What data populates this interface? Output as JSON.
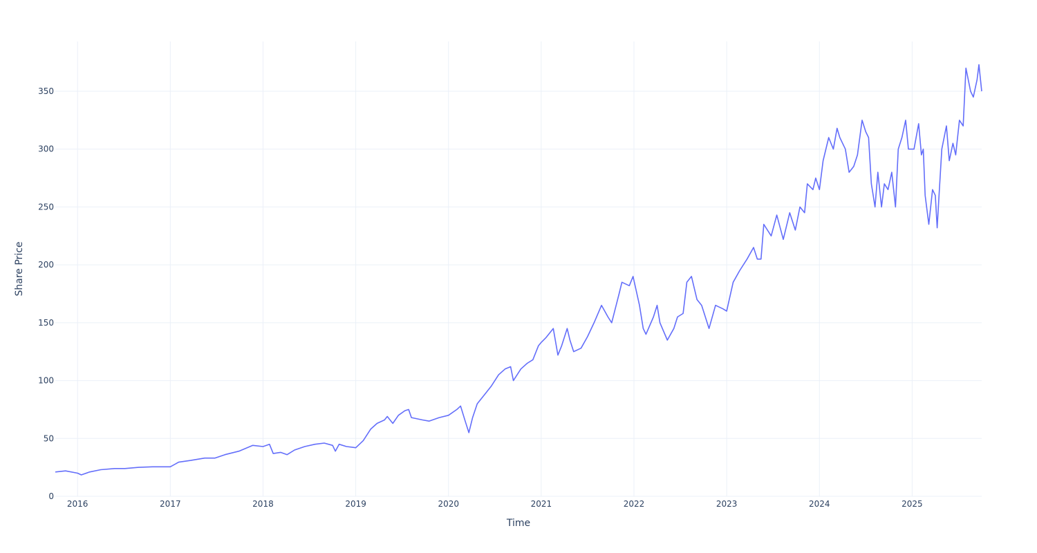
{
  "chart_data": {
    "type": "line",
    "title": "",
    "xlabel": "Time",
    "ylabel": "Share Price",
    "xlim": [
      2015.76,
      2025.75
    ],
    "ylim": [
      0,
      393
    ],
    "grid": true,
    "legend": "none",
    "line_color": "#636efa",
    "x_ticks": [
      2016,
      2017,
      2018,
      2019,
      2020,
      2021,
      2022,
      2023,
      2024,
      2025
    ],
    "x_tick_labels": [
      "2016",
      "2017",
      "2018",
      "2019",
      "2020",
      "2021",
      "2022",
      "2023",
      "2024",
      "2025"
    ],
    "y_ticks": [
      0,
      50,
      100,
      150,
      200,
      250,
      300,
      350
    ],
    "y_tick_labels": [
      "0",
      "50",
      "100",
      "150",
      "200",
      "250",
      "300",
      "350"
    ],
    "series": [
      {
        "name": "Share Price",
        "x": [
          2015.76,
          2015.87,
          2016.0,
          2016.04,
          2016.13,
          2016.25,
          2016.4,
          2016.51,
          2016.66,
          2016.81,
          2017.0,
          2017.09,
          2017.22,
          2017.37,
          2017.48,
          2017.59,
          2017.74,
          2017.89,
          2018.0,
          2018.07,
          2018.11,
          2018.19,
          2018.26,
          2018.34,
          2018.45,
          2018.56,
          2018.66,
          2018.75,
          2018.78,
          2018.82,
          2018.9,
          2019.0,
          2019.08,
          2019.16,
          2019.23,
          2019.31,
          2019.34,
          2019.4,
          2019.46,
          2019.53,
          2019.57,
          2019.6,
          2019.72,
          2019.79,
          2019.9,
          2020.0,
          2020.09,
          2020.13,
          2020.18,
          2020.22,
          2020.26,
          2020.31,
          2020.39,
          2020.46,
          2020.54,
          2020.61,
          2020.67,
          2020.7,
          2020.78,
          2020.85,
          2020.91,
          2020.97,
          2021.0,
          2021.05,
          2021.13,
          2021.18,
          2021.22,
          2021.28,
          2021.31,
          2021.35,
          2021.43,
          2021.5,
          2021.57,
          2021.65,
          2021.72,
          2021.76,
          2021.84,
          2021.87,
          2021.95,
          2021.99,
          2022.06,
          2022.1,
          2022.13,
          2022.21,
          2022.25,
          2022.28,
          2022.36,
          2022.43,
          2022.47,
          2022.53,
          2022.57,
          2022.62,
          2022.68,
          2022.73,
          2022.81,
          2022.88,
          2022.96,
          2023.0,
          2023.07,
          2023.14,
          2023.22,
          2023.29,
          2023.33,
          2023.37,
          2023.4,
          2023.48,
          2023.54,
          2023.61,
          2023.68,
          2023.74,
          2023.79,
          2023.84,
          2023.87,
          2023.93,
          2023.96,
          2024.0,
          2024.04,
          2024.1,
          2024.15,
          2024.19,
          2024.22,
          2024.28,
          2024.32,
          2024.37,
          2024.41,
          2024.46,
          2024.5,
          2024.53,
          2024.56,
          2024.6,
          2024.63,
          2024.67,
          2024.7,
          2024.74,
          2024.78,
          2024.82,
          2024.85,
          2024.89,
          2024.93,
          2024.96,
          2025.02,
          2025.07,
          2025.1,
          2025.12,
          2025.14,
          2025.18,
          2025.22,
          2025.25,
          2025.27,
          2025.29,
          2025.32,
          2025.37,
          2025.4,
          2025.44,
          2025.47,
          2025.51,
          2025.55,
          2025.58,
          2025.63,
          2025.66,
          2025.7,
          2025.72,
          2025.75
        ],
        "values": [
          21,
          22,
          20,
          18.5,
          21,
          23,
          24,
          24,
          25,
          25.5,
          25.5,
          29.5,
          31,
          33,
          33,
          36,
          39,
          44,
          43,
          45,
          37,
          38,
          36,
          40,
          43,
          45,
          46,
          44,
          39,
          45,
          43,
          42,
          48,
          58,
          63,
          66,
          69,
          63,
          70,
          74,
          75,
          68,
          66,
          65,
          68,
          70,
          75,
          78,
          65,
          55,
          68,
          80,
          88,
          95,
          105,
          110,
          112,
          100,
          110,
          115,
          118,
          130,
          133,
          137,
          145,
          122,
          130,
          145,
          135,
          125,
          128,
          138,
          150,
          165,
          155,
          150,
          175,
          185,
          182,
          190,
          165,
          145,
          140,
          155,
          165,
          150,
          135,
          145,
          155,
          158,
          185,
          190,
          170,
          165,
          145,
          165,
          162,
          160,
          185,
          195,
          205,
          215,
          205,
          205,
          235,
          225,
          243,
          222,
          245,
          230,
          250,
          245,
          270,
          265,
          275,
          265,
          290,
          310,
          300,
          318,
          310,
          300,
          280,
          285,
          295,
          325,
          315,
          310,
          270,
          250,
          280,
          250,
          270,
          265,
          280,
          250,
          300,
          310,
          325,
          300,
          300,
          322,
          295,
          300,
          260,
          235,
          265,
          260,
          232,
          260,
          300,
          320,
          290,
          305,
          295,
          325,
          320,
          370,
          350,
          345,
          360,
          373,
          350
        ]
      }
    ]
  }
}
